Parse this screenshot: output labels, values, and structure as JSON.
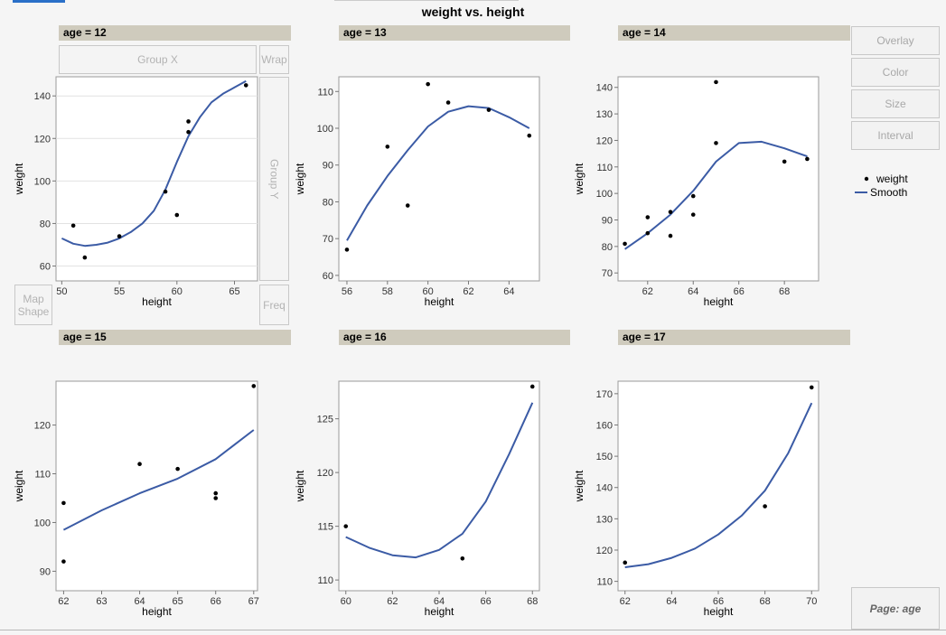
{
  "title": "weight vs. height",
  "zones": {
    "group_x": "Group X",
    "wrap": "Wrap",
    "group_y": "Group Y",
    "freq": "Freq",
    "map_shape": "Map Shape"
  },
  "buttons": {
    "overlay": "Overlay",
    "color": "Color",
    "size": "Size",
    "interval": "Interval",
    "page": "Page: age"
  },
  "legend": {
    "points_label": "weight",
    "smooth_label": "Smooth"
  },
  "colors": {
    "smooth": "#3b5ba5",
    "point": "#000000",
    "header": "#cfcbbd"
  },
  "chart_data": [
    {
      "type": "scatter",
      "header": "age = 12",
      "xlabel": "height",
      "ylabel": "weight",
      "xlim": [
        49.5,
        67
      ],
      "ylim": [
        53,
        149
      ],
      "xticks": [
        50,
        55,
        60,
        65
      ],
      "yticks": [
        60,
        80,
        100,
        120,
        140
      ],
      "points": [
        [
          51,
          79
        ],
        [
          52,
          64
        ],
        [
          55,
          74
        ],
        [
          59,
          95
        ],
        [
          60,
          84
        ],
        [
          61,
          123
        ],
        [
          61,
          128
        ],
        [
          66,
          145
        ]
      ],
      "smooth": [
        [
          50,
          73
        ],
        [
          51,
          70.5
        ],
        [
          52,
          69.5
        ],
        [
          53,
          70
        ],
        [
          54,
          71
        ],
        [
          55,
          73
        ],
        [
          56,
          76
        ],
        [
          57,
          80
        ],
        [
          58,
          86
        ],
        [
          59,
          96
        ],
        [
          60,
          109
        ],
        [
          61,
          121
        ],
        [
          62,
          130
        ],
        [
          63,
          137
        ],
        [
          64,
          141
        ],
        [
          65,
          144
        ],
        [
          66,
          147
        ]
      ]
    },
    {
      "type": "scatter",
      "header": "age = 13",
      "xlabel": "height",
      "ylabel": "weight",
      "xlim": [
        55.6,
        65.5
      ],
      "ylim": [
        58.5,
        114
      ],
      "xticks": [
        56,
        58,
        60,
        62,
        64
      ],
      "yticks": [
        60,
        70,
        80,
        90,
        100,
        110
      ],
      "points": [
        [
          56,
          67
        ],
        [
          58,
          95
        ],
        [
          59,
          79
        ],
        [
          60,
          112
        ],
        [
          61,
          107
        ],
        [
          63,
          105
        ],
        [
          65,
          98
        ]
      ],
      "smooth": [
        [
          56,
          69.5
        ],
        [
          57,
          79
        ],
        [
          58,
          87
        ],
        [
          59,
          94
        ],
        [
          60,
          100.5
        ],
        [
          61,
          104.5
        ],
        [
          62,
          106
        ],
        [
          63,
          105.5
        ],
        [
          64,
          103
        ],
        [
          65,
          100
        ]
      ]
    },
    {
      "type": "scatter",
      "header": "age = 14",
      "xlabel": "height",
      "ylabel": "weight",
      "xlim": [
        60.7,
        69.5
      ],
      "ylim": [
        67,
        144
      ],
      "xticks": [
        62,
        64,
        66,
        68
      ],
      "yticks": [
        70,
        80,
        90,
        100,
        110,
        120,
        130,
        140
      ],
      "points": [
        [
          61,
          81
        ],
        [
          62,
          85
        ],
        [
          62,
          91
        ],
        [
          63,
          84
        ],
        [
          63,
          93
        ],
        [
          64,
          92
        ],
        [
          64,
          99
        ],
        [
          65,
          119
        ],
        [
          65,
          142
        ],
        [
          68,
          112
        ],
        [
          69,
          113
        ]
      ],
      "smooth": [
        [
          61,
          79
        ],
        [
          62,
          85
        ],
        [
          63,
          92
        ],
        [
          64,
          101
        ],
        [
          65,
          112
        ],
        [
          66,
          119
        ],
        [
          67,
          119.5
        ],
        [
          68,
          117
        ],
        [
          69,
          114
        ]
      ]
    },
    {
      "type": "scatter",
      "header": "age = 15",
      "xlabel": "height",
      "ylabel": "weight",
      "xlim": [
        61.8,
        67.1
      ],
      "ylim": [
        86,
        129
      ],
      "xticks": [
        62,
        63,
        64,
        65,
        66,
        67
      ],
      "yticks": [
        90,
        100,
        110,
        120
      ],
      "points": [
        [
          62,
          104
        ],
        [
          62,
          92
        ],
        [
          64,
          112
        ],
        [
          65,
          111
        ],
        [
          66,
          106
        ],
        [
          66,
          105
        ],
        [
          67,
          128
        ]
      ],
      "smooth": [
        [
          62,
          98.5
        ],
        [
          63,
          102.5
        ],
        [
          64,
          106
        ],
        [
          65,
          109
        ],
        [
          66,
          113
        ],
        [
          67,
          119
        ]
      ]
    },
    {
      "type": "scatter",
      "header": "age = 16",
      "xlabel": "height",
      "ylabel": "weight",
      "xlim": [
        59.7,
        68.3
      ],
      "ylim": [
        109,
        128.5
      ],
      "xticks": [
        60,
        62,
        64,
        66,
        68
      ],
      "yticks": [
        110,
        115,
        120,
        125
      ],
      "points": [
        [
          60,
          115
        ],
        [
          65,
          112
        ],
        [
          68,
          128
        ]
      ],
      "smooth": [
        [
          60,
          114
        ],
        [
          61,
          113
        ],
        [
          62,
          112.3
        ],
        [
          63,
          112.1
        ],
        [
          64,
          112.8
        ],
        [
          65,
          114.3
        ],
        [
          66,
          117.3
        ],
        [
          67,
          121.7
        ],
        [
          68,
          126.5
        ]
      ]
    },
    {
      "type": "scatter",
      "header": "age = 17",
      "xlabel": "height",
      "ylabel": "weight",
      "xlim": [
        61.7,
        70.3
      ],
      "ylim": [
        107,
        174
      ],
      "xticks": [
        62,
        64,
        66,
        68,
        70
      ],
      "yticks": [
        110,
        120,
        130,
        140,
        150,
        160,
        170
      ],
      "points": [
        [
          62,
          116
        ],
        [
          68,
          134
        ],
        [
          70,
          172
        ]
      ],
      "smooth": [
        [
          62,
          114.5
        ],
        [
          63,
          115.5
        ],
        [
          64,
          117.5
        ],
        [
          65,
          120.5
        ],
        [
          66,
          125
        ],
        [
          67,
          131
        ],
        [
          68,
          139
        ],
        [
          69,
          151
        ],
        [
          70,
          167
        ]
      ]
    }
  ]
}
